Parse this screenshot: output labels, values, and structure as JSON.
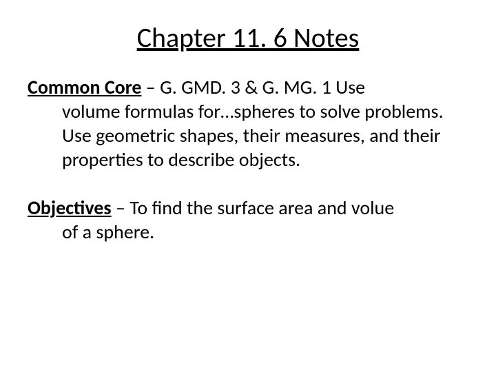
{
  "title": "Chapter 11. 6 Notes",
  "common_core": {
    "label": "Common Core",
    "separator": " – ",
    "first_part": "G. GMD. 3 & G. MG. 1  Use",
    "rest": "volume formulas for…spheres to solve problems.  Use geometric shapes, their measures, and their properties to describe objects."
  },
  "objectives": {
    "label": "Objectives",
    "separator": " – ",
    "first_part": "To find the surface area and volue",
    "rest": "of a sphere."
  },
  "styles": {
    "background_color": "#ffffff",
    "text_color": "#000000",
    "title_fontsize": 40,
    "body_fontsize": 28,
    "font_family": "Calibri"
  }
}
